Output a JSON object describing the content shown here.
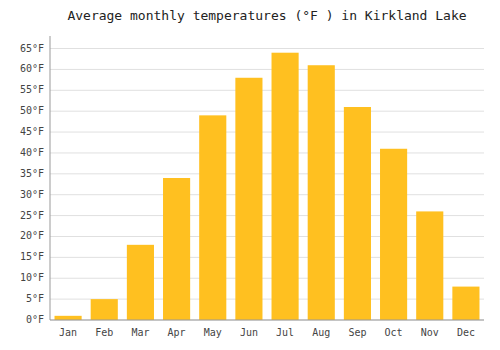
{
  "chart_data": {
    "type": "bar",
    "title": "Average monthly temperatures (°F ) in Kirkland Lake",
    "categories": [
      "Jan",
      "Feb",
      "Mar",
      "Apr",
      "May",
      "Jun",
      "Jul",
      "Aug",
      "Sep",
      "Oct",
      "Nov",
      "Dec"
    ],
    "values": [
      1,
      5,
      18,
      34,
      49,
      58,
      64,
      61,
      51,
      41,
      26,
      8
    ],
    "color": "#FFC020",
    "ylim": [
      0,
      68
    ],
    "yticks": [
      {
        "value": 0,
        "label": "0°F"
      },
      {
        "value": 5,
        "label": "5°F"
      },
      {
        "value": 10,
        "label": "10°F"
      },
      {
        "value": 15,
        "label": "15°F"
      },
      {
        "value": 20,
        "label": "20°F"
      },
      {
        "value": 25,
        "label": "25°F"
      },
      {
        "value": 30,
        "label": "30°F"
      },
      {
        "value": 35,
        "label": "35°F"
      },
      {
        "value": 40,
        "label": "40°F"
      },
      {
        "value": 45,
        "label": "45°F"
      },
      {
        "value": 50,
        "label": "50°F"
      },
      {
        "value": 55,
        "label": "55°F"
      },
      {
        "value": 60,
        "label": "60°F"
      },
      {
        "value": 65,
        "label": "65°F"
      }
    ],
    "grid": true
  }
}
